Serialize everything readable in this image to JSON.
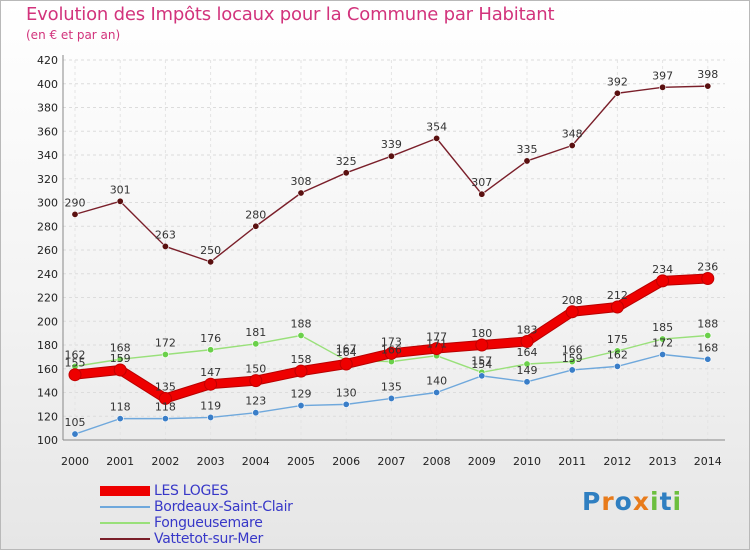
{
  "title": "Evolution des Impôts locaux pour la Commune par Habitant",
  "subtitle": "(en € et par an)",
  "chart_data": {
    "type": "line",
    "x": [
      "2000",
      "2001",
      "2002",
      "2003",
      "2004",
      "2005",
      "2006",
      "2007",
      "2008",
      "2009",
      "2010",
      "2011",
      "2012",
      "2013",
      "2014"
    ],
    "ylim": [
      100,
      420
    ],
    "yticks": [
      100,
      120,
      140,
      160,
      180,
      200,
      220,
      240,
      260,
      280,
      300,
      320,
      340,
      360,
      380,
      400,
      420
    ],
    "grid": true,
    "legend_position": "bottom-left",
    "series": [
      {
        "name": "Vattetot-sur-Mer",
        "color": "#7a1f2a",
        "marker": "#5a1010",
        "values": [
          290,
          301,
          263,
          250,
          280,
          308,
          325,
          339,
          354,
          307,
          335,
          348,
          392,
          397,
          398
        ],
        "labels": [
          "290",
          "301",
          "263",
          "250",
          "280",
          "308",
          "325",
          "339",
          "354",
          "307",
          "335",
          "348",
          "392",
          "397",
          "398"
        ]
      },
      {
        "name": "Fongueusemare",
        "color": "#99e07a",
        "marker": "#6ad04a",
        "values": [
          162,
          168,
          172,
          176,
          181,
          188,
          167,
          166,
          171,
          157,
          164,
          166,
          175,
          185,
          188
        ],
        "labels": [
          "162",
          "168",
          "172",
          "176",
          "181",
          "188",
          "167",
          "166",
          "171",
          "157",
          "164",
          "166",
          "175",
          "185",
          "188"
        ]
      },
      {
        "name": "Bordeaux-Saint-Clair",
        "color": "#6fa8dc",
        "marker": "#3a7ec8",
        "values": [
          105,
          118,
          118,
          119,
          123,
          129,
          130,
          135,
          140,
          154,
          149,
          159,
          162,
          172,
          168
        ],
        "labels": [
          "105",
          "118",
          "118",
          "119",
          "123",
          "129",
          "130",
          "135",
          "140",
          "154",
          "149",
          "159",
          "162",
          "172",
          "168"
        ]
      },
      {
        "name": "LES LOGES",
        "color": "#ee0000",
        "marker": "#ee0000",
        "values": [
          155,
          159,
          135,
          147,
          150,
          158,
          164,
          173,
          177,
          180,
          183,
          208,
          212,
          234,
          236
        ],
        "labels": [
          "155",
          "159",
          "135",
          "147",
          "150",
          "158",
          "164",
          "173",
          "177",
          "180",
          "183",
          "208",
          "212",
          "234",
          "236"
        ]
      }
    ]
  },
  "legend": {
    "items": [
      "LES LOGES",
      "Bordeaux-Saint-Clair",
      "Fongueusemare",
      "Vattetot-sur-Mer"
    ]
  },
  "logo": {
    "text": "Proxiti",
    "letters": [
      {
        "ch": "P",
        "color": "#2f7fc1"
      },
      {
        "ch": "r",
        "color": "#e87b1b"
      },
      {
        "ch": "o",
        "color": "#2f7fc1"
      },
      {
        "ch": "x",
        "color": "#e87b1b"
      },
      {
        "ch": "i",
        "color": "#6cbf3f"
      },
      {
        "ch": "t",
        "color": "#2f7fc1"
      },
      {
        "ch": "i",
        "color": "#6cbf3f"
      }
    ]
  }
}
